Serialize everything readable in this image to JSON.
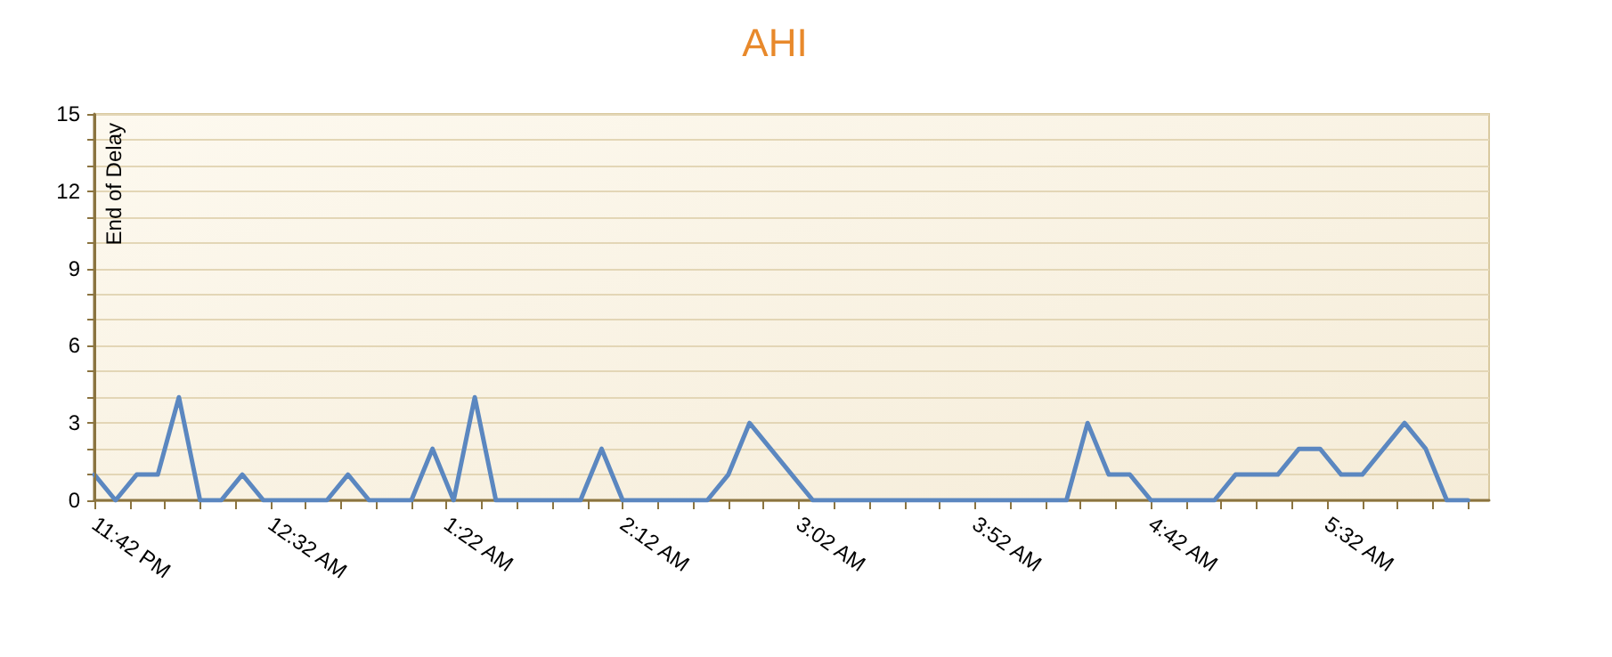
{
  "chart_data": {
    "type": "line",
    "title": "AHI",
    "x": [
      "--01-01T23:42",
      "--01-01T23:48",
      "--01-01T23:54",
      "--01-02T00:00",
      "--01-02T00:06",
      "--01-02T00:12",
      "--01-02T00:18",
      "--01-02T00:24",
      "--01-02T00:30",
      "--01-02T00:36",
      "--01-02T00:42",
      "--01-02T00:48",
      "--01-02T00:54",
      "--01-02T01:00",
      "--01-02T01:06",
      "--01-02T01:12",
      "--01-02T01:18",
      "--01-02T01:24",
      "--01-02T01:30",
      "--01-02T01:36",
      "--01-02T01:42",
      "--01-02T01:48",
      "--01-02T01:54",
      "--01-02T02:00",
      "--01-02T02:06",
      "--01-02T02:12",
      "--01-02T02:18",
      "--01-02T02:24",
      "--01-02T02:30",
      "--01-02T02:36",
      "--01-02T02:42",
      "--01-02T02:48",
      "--01-02T02:54",
      "--01-02T03:00",
      "--01-02T03:06",
      "--01-02T03:12",
      "--01-02T03:18",
      "--01-02T03:24",
      "--01-02T03:30",
      "--01-02T03:36",
      "--01-02T03:42",
      "--01-02T03:48",
      "--01-02T03:54",
      "--01-02T04:00",
      "--01-02T04:06",
      "--01-02T04:12",
      "--01-02T04:18",
      "--01-02T04:24",
      "--01-02T04:30",
      "--01-02T04:36",
      "--01-02T04:42",
      "--01-02T04:48",
      "--01-02T04:54",
      "--01-02T05:00",
      "--01-02T05:06",
      "--01-02T05:12",
      "--01-02T05:18",
      "--01-02T05:24",
      "--01-02T05:30",
      "--01-02T05:36",
      "--01-02T05:42",
      "--01-02T05:48",
      "--01-02T05:54",
      "--01-02T06:00",
      "--01-02T06:06",
      "--01-02T06:12"
    ],
    "series": [
      {
        "color": "#5b87c0",
        "values": [
          1,
          0,
          1,
          1,
          4,
          0,
          0,
          1,
          0,
          0,
          0,
          0,
          1,
          0,
          0,
          0,
          2,
          0,
          4,
          0,
          0,
          0,
          0,
          0,
          2,
          0,
          0,
          0,
          0,
          0,
          1,
          3,
          2,
          1,
          0,
          0,
          0,
          0,
          0,
          0,
          0,
          0,
          0,
          0,
          0,
          0,
          0,
          3,
          1,
          1,
          0,
          0,
          0,
          0,
          1,
          1,
          1,
          2,
          2,
          1,
          1,
          2,
          3,
          2,
          0,
          0
        ]
      }
    ],
    "xlim": [
      "--01-01T23:42",
      "--01-02T06:18"
    ],
    "xticks": [
      {
        "value": "--01-01T23:42",
        "label": "11:42 PM"
      },
      {
        "value": "--01-01T23:52",
        "label": null
      },
      {
        "value": "--01-02T00:02",
        "label": null
      },
      {
        "value": "--01-02T00:12",
        "label": null
      },
      {
        "value": "--01-02T00:22",
        "label": null
      },
      {
        "value": "--01-02T00:32",
        "label": "12:32 AM"
      },
      {
        "value": "--01-02T00:42",
        "label": null
      },
      {
        "value": "--01-02T00:52",
        "label": null
      },
      {
        "value": "--01-02T01:02",
        "label": null
      },
      {
        "value": "--01-02T01:12",
        "label": null
      },
      {
        "value": "--01-02T01:22",
        "label": "1:22 AM"
      },
      {
        "value": "--01-02T01:32",
        "label": null
      },
      {
        "value": "--01-02T01:42",
        "label": null
      },
      {
        "value": "--01-02T01:52",
        "label": null
      },
      {
        "value": "--01-02T02:02",
        "label": null
      },
      {
        "value": "--01-02T02:12",
        "label": "2:12 AM"
      },
      {
        "value": "--01-02T02:22",
        "label": null
      },
      {
        "value": "--01-02T02:32",
        "label": null
      },
      {
        "value": "--01-02T02:42",
        "label": null
      },
      {
        "value": "--01-02T02:52",
        "label": null
      },
      {
        "value": "--01-02T03:02",
        "label": "3:02 AM"
      },
      {
        "value": "--01-02T03:12",
        "label": null
      },
      {
        "value": "--01-02T03:22",
        "label": null
      },
      {
        "value": "--01-02T03:32",
        "label": null
      },
      {
        "value": "--01-02T03:42",
        "label": null
      },
      {
        "value": "--01-02T03:52",
        "label": "3:52 AM"
      },
      {
        "value": "--01-02T04:02",
        "label": null
      },
      {
        "value": "--01-02T04:12",
        "label": null
      },
      {
        "value": "--01-02T04:22",
        "label": null
      },
      {
        "value": "--01-02T04:32",
        "label": null
      },
      {
        "value": "--01-02T04:42",
        "label": "4:42 AM"
      },
      {
        "value": "--01-02T04:52",
        "label": null
      },
      {
        "value": "--01-02T05:02",
        "label": null
      },
      {
        "value": "--01-02T05:12",
        "label": null
      },
      {
        "value": "--01-02T05:22",
        "label": null
      },
      {
        "value": "--01-02T05:32",
        "label": "5:32 AM"
      },
      {
        "value": "--01-02T05:42",
        "label": null
      },
      {
        "value": "--01-02T05:52",
        "label": null
      },
      {
        "value": "--01-02T06:02",
        "label": null
      },
      {
        "value": "--01-02T06:12",
        "label": null
      }
    ],
    "ylim": [
      0,
      15
    ],
    "yticks": [
      0,
      {
        "value": 1,
        "label": null
      },
      {
        "value": 2,
        "label": null
      },
      3,
      {
        "value": 4,
        "label": null
      },
      {
        "value": 5,
        "label": null
      },
      6,
      {
        "value": 7,
        "label": null
      },
      {
        "value": 8,
        "label": null
      },
      9,
      {
        "value": 10,
        "label": null
      },
      {
        "value": 11,
        "label": null
      },
      12,
      {
        "value": 13,
        "label": null
      },
      {
        "value": 14,
        "label": null
      },
      15
    ],
    "ref_lines": [
      {
        "axis": "x",
        "value": "--01-01T23:42",
        "label": "End of Delay",
        "color": "#8b7440"
      }
    ],
    "grid": "y",
    "marker": "none",
    "line_style": "solid"
  }
}
